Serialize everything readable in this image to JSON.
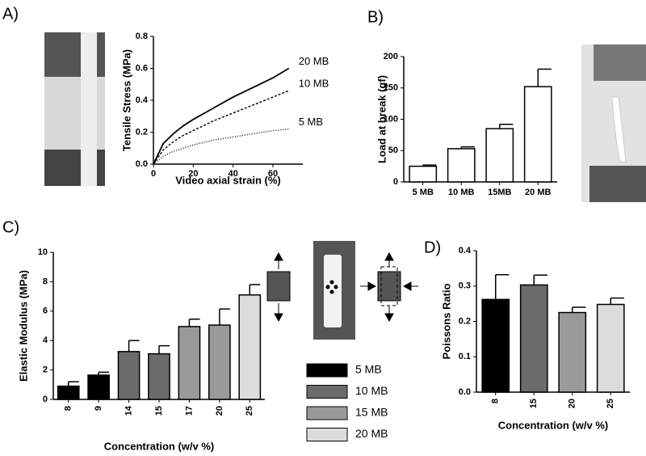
{
  "chart_data": [
    {
      "type": "line",
      "panel": "A)",
      "xlabel": "Video axial strain (%)",
      "ylabel": "Tensile Stress (MPa)",
      "x": [
        0,
        5,
        10,
        15,
        20,
        30,
        40,
        50,
        60,
        68
      ],
      "series": [
        {
          "name": "20 MB",
          "color": "#000000",
          "style": "solid",
          "values": [
            0,
            0.13,
            0.19,
            0.24,
            0.28,
            0.35,
            0.42,
            0.48,
            0.54,
            0.6
          ]
        },
        {
          "name": "10 MB",
          "color": "#000000",
          "style": "dashed",
          "values": [
            0,
            0.09,
            0.14,
            0.18,
            0.21,
            0.27,
            0.32,
            0.37,
            0.42,
            0.46
          ]
        },
        {
          "name": "5 MB",
          "color": "#000000",
          "style": "dotted",
          "values": [
            0,
            0.05,
            0.08,
            0.1,
            0.12,
            0.15,
            0.17,
            0.19,
            0.21,
            0.22
          ]
        }
      ],
      "xlim": [
        0,
        75
      ],
      "xticks": [
        0,
        20,
        40,
        60
      ],
      "ylim": [
        0,
        0.8
      ],
      "yticks": [
        {
          "value": 0,
          "label": "0.0"
        },
        0.2,
        0.4,
        0.6,
        0.8
      ]
    },
    {
      "type": "bar",
      "panel": "B)",
      "ylabel": "Load at break (gf)",
      "categories": [
        "5 MB",
        "10 MB",
        "15MB",
        "20 MB"
      ],
      "values": [
        25,
        53,
        85,
        152
      ],
      "errors": [
        2,
        3,
        7,
        28
      ],
      "colors": [
        "#ffffff",
        "#ffffff",
        "#ffffff",
        "#ffffff"
      ],
      "ylim": [
        0,
        200
      ],
      "yticks": [
        0,
        50,
        100,
        150,
        200
      ]
    },
    {
      "type": "bar",
      "panel": "C)",
      "xlabel": "Concentration (w/v %)",
      "ylabel": "Elastic Modulus (MPa)",
      "categories": [
        "8",
        "9",
        "14",
        "15",
        "17",
        "20",
        "25"
      ],
      "values": [
        0.9,
        1.65,
        3.25,
        3.1,
        4.95,
        5.05,
        7.1
      ],
      "errors": [
        0.3,
        0.2,
        0.75,
        0.55,
        0.5,
        1.1,
        0.7
      ],
      "colors": [
        "#000000",
        "#000000",
        "#6b6b6b",
        "#6b6b6b",
        "#9a9a9a",
        "#9a9a9a",
        "#dcdcdc"
      ],
      "legend": [
        {
          "name": "5 MB",
          "color": "#000000"
        },
        {
          "name": "10 MB",
          "color": "#6b6b6b"
        },
        {
          "name": "15 MB",
          "color": "#9a9a9a"
        },
        {
          "name": "20 MB",
          "color": "#dcdcdc"
        }
      ],
      "ylim": [
        0,
        10
      ],
      "yticks": [
        0,
        2,
        4,
        6,
        8,
        10
      ]
    },
    {
      "type": "bar",
      "panel": "D)",
      "xlabel": "Concentration (w/v %)",
      "ylabel": "Poissons Ratio",
      "categories": [
        "8",
        "15",
        "20",
        "25"
      ],
      "values": [
        0.262,
        0.303,
        0.225,
        0.248
      ],
      "errors": [
        0.07,
        0.028,
        0.015,
        0.018
      ],
      "colors": [
        "#000000",
        "#6b6b6b",
        "#9a9a9a",
        "#dcdcdc"
      ],
      "ylim": [
        0,
        0.4
      ],
      "yticks": [
        {
          "value": 0,
          "label": "0.0"
        },
        0.1,
        0.2,
        0.3,
        0.4
      ]
    }
  ]
}
